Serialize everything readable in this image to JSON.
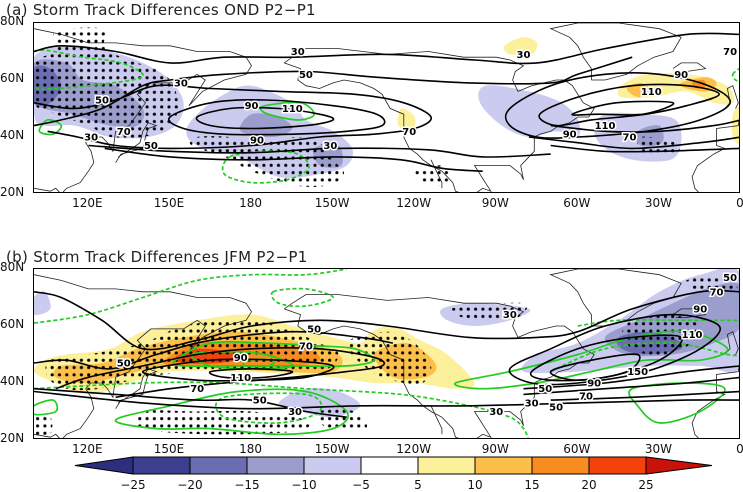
{
  "panels": [
    {
      "title": "(a) Storm Track Differences OND P2−P1",
      "contour_labels": [
        "30",
        "30",
        "30",
        "30",
        "70",
        "90",
        "110",
        "90",
        "50",
        "50",
        "30",
        "50",
        "90",
        "110",
        "70",
        "70",
        "70",
        "90",
        "110"
      ]
    },
    {
      "title": "(b) Storm Track Differences JFM P2−P1",
      "contour_labels": [
        "50",
        "50",
        "50",
        "70",
        "90",
        "110",
        "70",
        "50",
        "30",
        "30",
        "30",
        "50",
        "70",
        "90",
        "110",
        "150",
        "90",
        "70",
        "50",
        "30"
      ]
    }
  ],
  "axes": {
    "lat_ticks": [
      "80N",
      "60N",
      "40N",
      "20N"
    ],
    "lon_ticks": [
      "120E",
      "150E",
      "180",
      "150W",
      "120W",
      "90W",
      "60W",
      "30W",
      "0"
    ]
  },
  "colorbar": {
    "labels": [
      "−25",
      "−20",
      "−15",
      "−10",
      "−5",
      "5",
      "10",
      "15",
      "20",
      "25"
    ],
    "colors": [
      "#2d2f7e",
      "#3b3f8e",
      "#6a6eb0",
      "#9b9ecd",
      "#cacbef",
      "#ffffff",
      "#fdf09a",
      "#fcbf4a",
      "#f98c20",
      "#f4420c",
      "#c8120a"
    ]
  },
  "colors": {
    "mean_contour": "#000000",
    "difference_contour": "#22cc22",
    "stipple": "#000000"
  }
}
